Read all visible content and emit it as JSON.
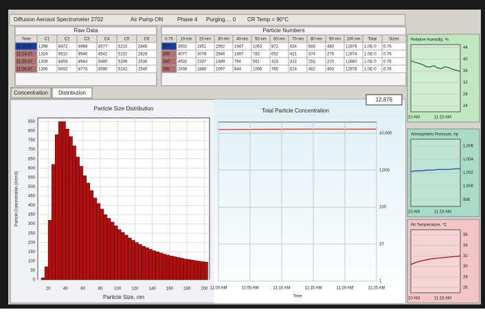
{
  "header": {
    "items": [
      "Diffusion Aerosol Spectrometer 2702",
      "Air Pump ON",
      "Phase 4",
      "Purging.... 0",
      "CR Temp = 90°C"
    ]
  },
  "raw_data": {
    "title": "Raw Data",
    "columns": [
      "Time",
      "C1",
      "C2",
      "C3",
      "C4",
      "C5",
      "C6"
    ],
    "rows": [
      [
        "11:23:47",
        "1298",
        "8472",
        "8968",
        "8577",
        "5215",
        "2846"
      ],
      [
        "11:24:47",
        "1324",
        "8510",
        "8946",
        "8542",
        "5232",
        "2828"
      ],
      [
        "11:25:47",
        "1309",
        "8493",
        "8944",
        "8480",
        "5206",
        "2536"
      ],
      [
        "11:26:47",
        "1306",
        "8502",
        "8774",
        "8590",
        "5242",
        "2540"
      ]
    ]
  },
  "particle_numbers": {
    "title": "Particle Numbers",
    "columns": [
      "0.75",
      "10-nm",
      "20-nm",
      "30-nm",
      "40-nm",
      "50-nm",
      "60-nm",
      "70-nm",
      "80-nm",
      "90-nm",
      "100-nm",
      "Total",
      "Sizes"
    ],
    "rows": [
      [
        "467",
        "3502",
        "2851",
        "2562",
        "1947",
        "1063",
        "872",
        "634",
        "583",
        "480",
        "12876",
        "1.0E-0",
        "0.76"
      ],
      [
        "395",
        "4077",
        "3078",
        "2846",
        "1897",
        "782",
        "652",
        "421",
        "374",
        "276",
        "12874",
        "1.0E-0",
        "0.76"
      ],
      [
        "340",
        "4632",
        "2337",
        "1889",
        "794",
        "561",
        "423",
        "322",
        "252",
        "210",
        "12880",
        "1.0E-0",
        "0.76"
      ],
      [
        "395",
        "2936",
        "2886",
        "1697",
        "844",
        "1006",
        "765",
        "614",
        "482",
        "450",
        "12876",
        "1.0E-0",
        "0.76"
      ]
    ]
  },
  "tabs": [
    "Concentration",
    "Distribution"
  ],
  "readout": "12,876",
  "size_distribution": {
    "type": "histogram",
    "title": "Particle Size Distribution",
    "x_label": "Particle Size, nm",
    "y_label": "Particle Concentration (#/cm3)",
    "color": "#b01010",
    "bins": [
      12,
      16,
      20,
      24,
      28,
      32,
      36,
      40,
      44,
      48,
      52,
      56,
      60,
      64,
      68,
      72,
      76,
      80,
      84,
      88,
      92,
      96,
      100,
      104,
      108,
      112,
      116,
      120,
      124,
      128,
      132,
      136,
      140,
      144,
      148,
      152,
      156,
      160,
      164,
      168,
      172,
      176,
      180,
      184,
      188,
      192,
      196,
      200,
      204
    ],
    "values": [
      10,
      70,
      320,
      620,
      780,
      850,
      850,
      810,
      770,
      720,
      660,
      610,
      560,
      520,
      480,
      440,
      410,
      380,
      350,
      330,
      310,
      290,
      270,
      255,
      240,
      225,
      212,
      200,
      190,
      180,
      172,
      164,
      156,
      150,
      144,
      138,
      133,
      128,
      124,
      120,
      116,
      112,
      109,
      106,
      103,
      100,
      97,
      95
    ],
    "xlim": [
      8,
      206
    ],
    "xticks": [
      20,
      40,
      60,
      80,
      100,
      120,
      140,
      160,
      180,
      200
    ],
    "ylim": [
      0,
      870
    ],
    "yticks": [
      0,
      50,
      100,
      150,
      200,
      250,
      300,
      350,
      400,
      450,
      500,
      550,
      600,
      650,
      700,
      750,
      800,
      850
    ],
    "grid": true
  },
  "total_concentration": {
    "type": "line",
    "title": "Total Particle Concentration",
    "x_label": "Time",
    "log_y": true,
    "color": "#d03030",
    "categories": [
      "11:00 AM",
      "11:05 AM",
      "11:10 AM",
      "11:15 AM",
      "11:20 AM",
      "11:25 AM"
    ],
    "values": [
      12500,
      12700,
      12800,
      12900,
      12850,
      12876
    ],
    "ylim": [
      1,
      20000
    ],
    "yticks": [
      1,
      10,
      100,
      {
        "value": 1000,
        "label": "1,000"
      },
      {
        "value": 10000,
        "label": "10,000"
      }
    ],
    "grid": true
  },
  "side_charts": [
    {
      "type": "line",
      "title": "Relative Humidity, %",
      "bg": "#bfe8bf",
      "color": "#1e6e2e",
      "x_labels": [
        "10 AM",
        "11:15 AM"
      ],
      "values": [
        39.5,
        39,
        38.6,
        38.2,
        37.5,
        37.3,
        37.8,
        37,
        36.8,
        37.4,
        37.1,
        36.5,
        36.2,
        35.8
      ],
      "ylim": [
        22,
        45
      ],
      "yticks": [
        24,
        28,
        32,
        36,
        40,
        44
      ]
    },
    {
      "type": "line",
      "title": "Atmospheric Pressure, hp",
      "bg": "#a8dcc6",
      "color": "#2040b0",
      "x_labels": [
        "10 AM",
        "11:15 AM"
      ],
      "values": [
        1002.2,
        1002.3,
        1002.3,
        1002.4,
        1002.4,
        1002.5,
        1002.5,
        1002.5,
        1002.6,
        1002.6
      ],
      "ylim": [
        997,
        1007
      ],
      "yticks": [
        {
          "value": 998,
          "label": "998"
        },
        {
          "value": 1000,
          "label": "1,000"
        },
        {
          "value": 1002,
          "label": "1,002"
        },
        {
          "value": 1004,
          "label": "1,004"
        },
        {
          "value": 1006,
          "label": "1,006"
        }
      ]
    },
    {
      "type": "line",
      "title": "Air Temperature, °C",
      "bg": "#f3c6c6",
      "color": "#902020",
      "x_labels": [
        "10 AM",
        "11:15 AM"
      ],
      "values": [
        30.4,
        30.8,
        31.1,
        31.3,
        31.5,
        31.6,
        31.7,
        31.8,
        31.9,
        32.0
      ],
      "ylim": [
        25,
        37
      ],
      "yticks": [
        26,
        28,
        30,
        32,
        34,
        36
      ]
    }
  ]
}
